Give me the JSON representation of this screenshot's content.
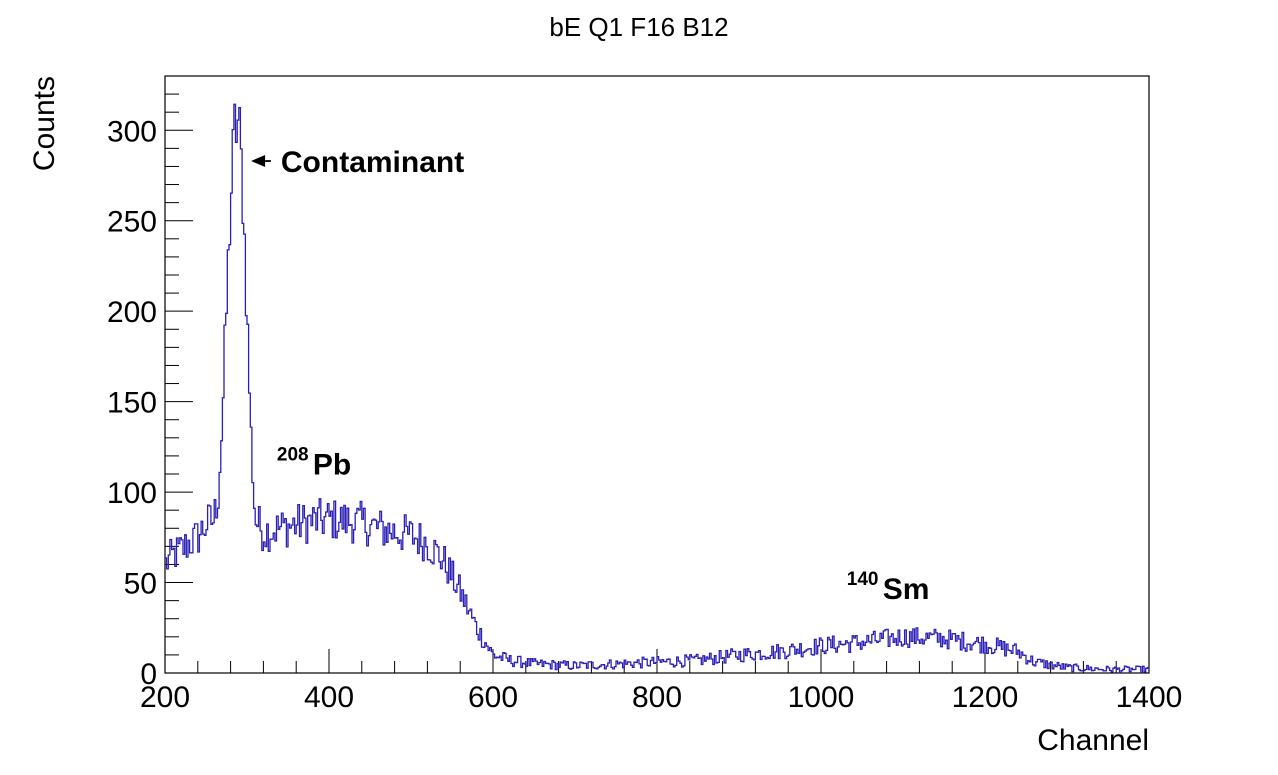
{
  "chart_data": {
    "type": "line",
    "title": "bE Q1 F16 B12",
    "xlabel": "Channel",
    "ylabel": "Counts",
    "xlim": [
      200,
      1400
    ],
    "ylim": [
      0,
      330
    ],
    "x_ticks": [
      200,
      400,
      600,
      800,
      1000,
      1200,
      1400
    ],
    "y_ticks": [
      0,
      50,
      100,
      150,
      200,
      250,
      300
    ],
    "grid": false,
    "legend": "none",
    "series": [
      {
        "color": "#2b1fb5",
        "x": [
          200,
          210,
          220,
          230,
          240,
          250,
          260,
          265,
          270,
          275,
          280,
          285,
          290,
          295,
          300,
          305,
          310,
          320,
          340,
          360,
          380,
          400,
          420,
          440,
          460,
          480,
          500,
          520,
          540,
          560,
          580,
          600,
          620,
          650,
          700,
          750,
          800,
          850,
          900,
          950,
          1000,
          1050,
          1100,
          1150,
          1200,
          1240,
          1260,
          1300,
          1350,
          1400
        ],
        "y": [
          60,
          65,
          68,
          72,
          75,
          82,
          85,
          100,
          140,
          200,
          260,
          300,
          305,
          265,
          200,
          130,
          85,
          78,
          80,
          82,
          84,
          85,
          84,
          83,
          80,
          78,
          76,
          72,
          62,
          45,
          25,
          10,
          7,
          5,
          4,
          5,
          6,
          7,
          10,
          12,
          15,
          17,
          20,
          19,
          16,
          12,
          6,
          3,
          2,
          2
        ]
      }
    ],
    "annotations": [
      {
        "text": "Contaminant",
        "x": 445,
        "y": 283
      },
      {
        "sup": "208",
        "text": "Pb",
        "x": 395,
        "y": 112
      },
      {
        "sup": "140",
        "text": "Sm",
        "x": 1090,
        "y": 43
      }
    ]
  }
}
